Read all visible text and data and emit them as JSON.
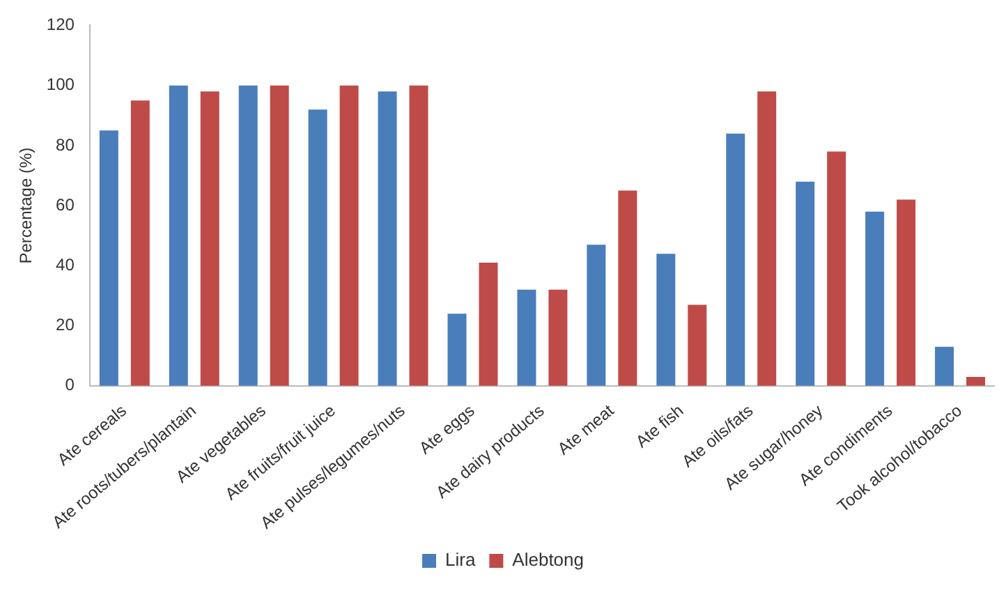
{
  "chart_data": {
    "type": "bar",
    "ylabel": "Percentage (%)",
    "categories": [
      "Ate cereals",
      "Ate roots/tubers/plantain",
      "Ate vegetables",
      "Ate fruits/fruit juice",
      "Ate pulses/legumes/nuts",
      "Ate eggs",
      "Ate dairy products",
      "Ate meat",
      "Ate fish",
      "Ate oils/fats",
      "Ate sugar/honey",
      "Ate condiments",
      "Took alcohol/tobacco"
    ],
    "series": [
      {
        "name": "Lira",
        "color": "#4a7ebb",
        "values": [
          85,
          100,
          100,
          92,
          98,
          24,
          32,
          47,
          44,
          84,
          68,
          58,
          13
        ]
      },
      {
        "name": "Alebtong",
        "color": "#be4b48",
        "values": [
          95,
          98,
          100,
          100,
          100,
          41,
          32,
          65,
          27,
          98,
          78,
          62,
          3
        ]
      }
    ],
    "ylim": [
      0,
      120
    ],
    "yticks": [
      0,
      20,
      40,
      60,
      80,
      100,
      120
    ],
    "grid": false,
    "legend": "bottom"
  }
}
